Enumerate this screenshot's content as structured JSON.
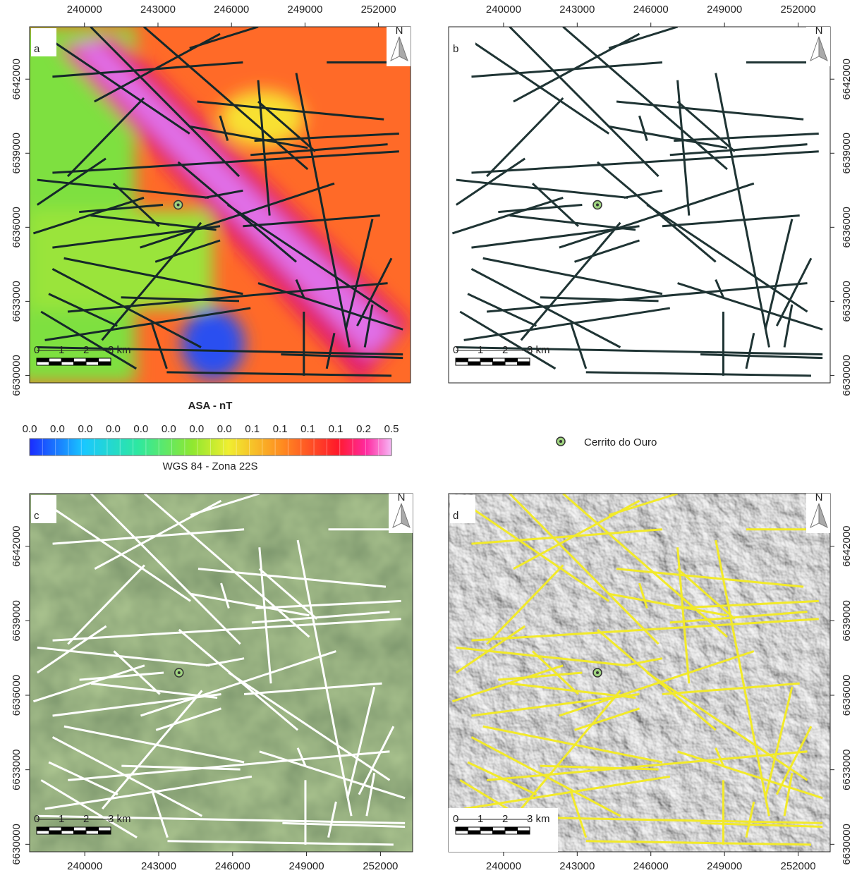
{
  "panels": [
    {
      "letter": "a"
    },
    {
      "letter": "b"
    },
    {
      "letter": "c"
    },
    {
      "letter": "d"
    }
  ],
  "easting_ticks": [
    "240000",
    "243000",
    "246000",
    "249000",
    "252000"
  ],
  "northing_ticks": [
    "6642000",
    "6639000",
    "6636000",
    "6633000",
    "6630000"
  ],
  "north": "N",
  "scale_bar": [
    "0",
    "1",
    "2",
    "3 km"
  ],
  "colorbar": {
    "title": "ASA - nT",
    "labels": [
      "0.0",
      "0.0",
      "0.0",
      "0.0",
      "0.0",
      "0.0",
      "0.0",
      "0.0",
      "0.1",
      "0.1",
      "0.1",
      "0.1",
      "0.2",
      "0.5"
    ],
    "projection": "WGS 84 - Zona 22S"
  },
  "legend": {
    "label": "Cerrito do Ouro"
  }
}
